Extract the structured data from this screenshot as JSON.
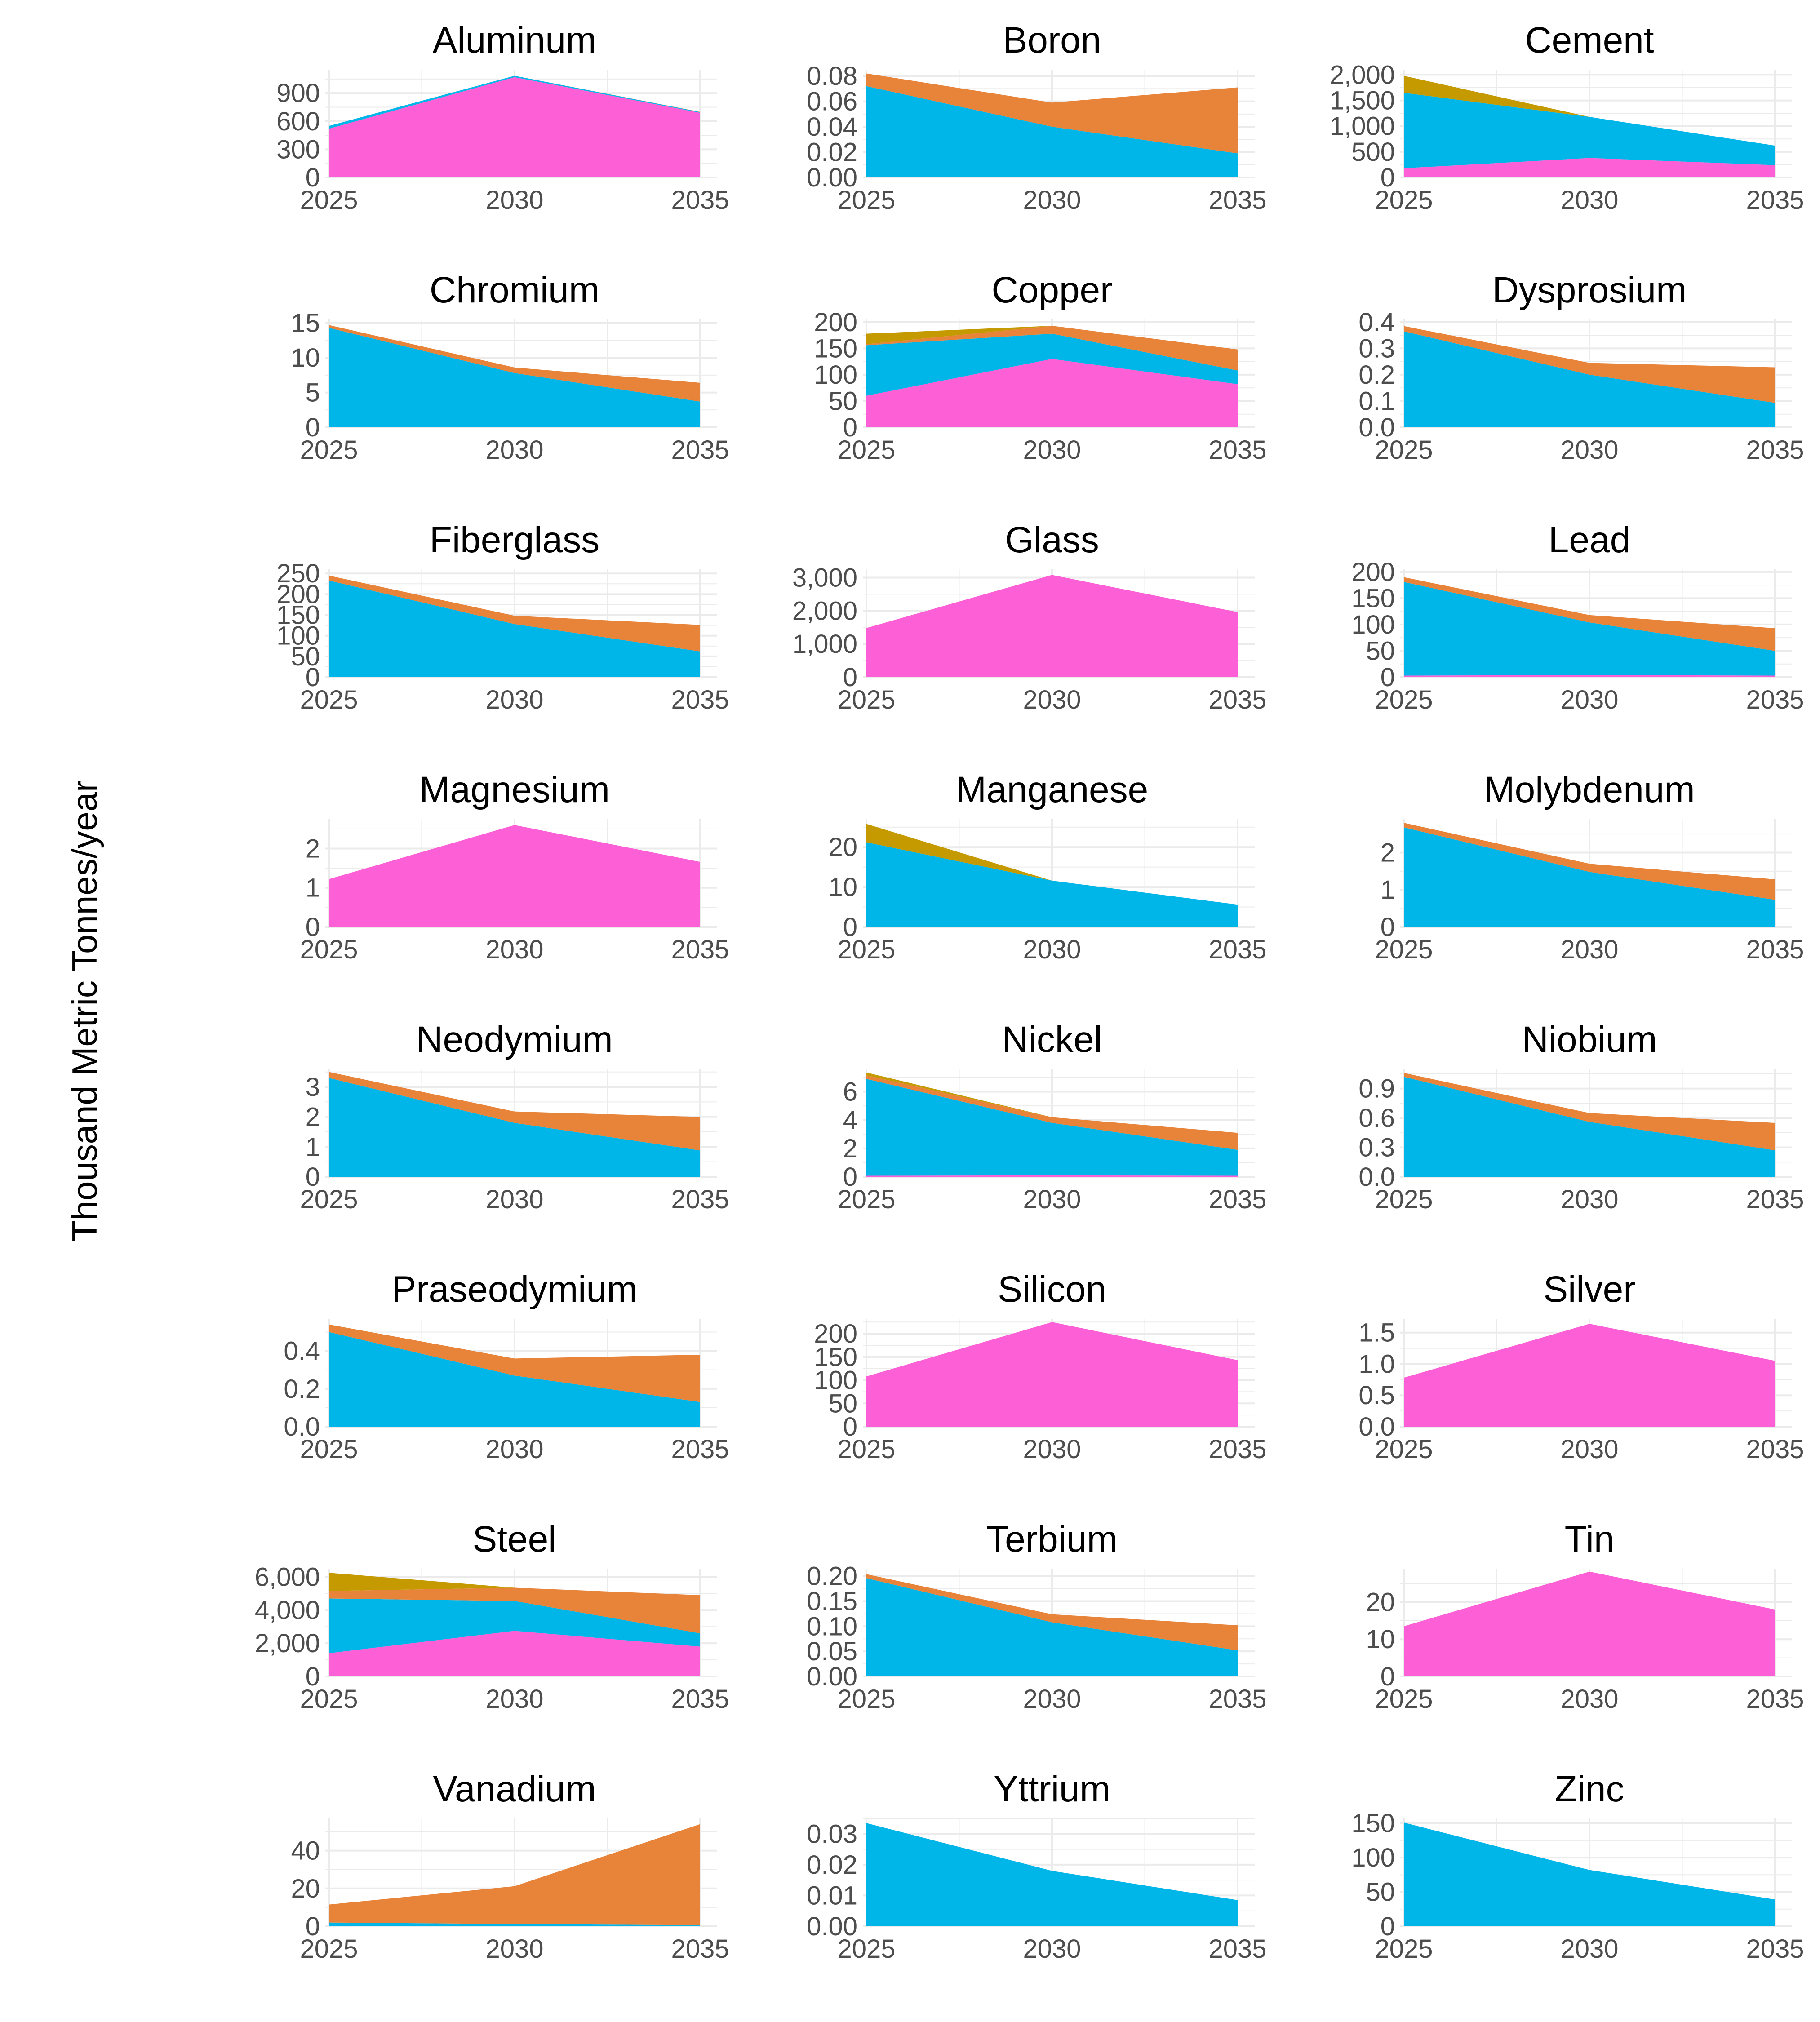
{
  "ylabel": "Thousand Metric Tonnes/year",
  "colors": {
    "series_olive": "#C49A00",
    "series_orange": "#E8833A",
    "series_cyan": "#00B5E8",
    "series_pink": "#FC5FD6",
    "grid": "#ebebeb"
  },
  "chart_data": [
    {
      "type": "area",
      "title": "Aluminum",
      "x": [
        2025,
        2030,
        2035
      ],
      "ylim": [
        0,
        1150
      ],
      "yticks": [
        0,
        300,
        600,
        900
      ],
      "yticklabels": [
        "0",
        "300",
        "600",
        "900"
      ],
      "series": [
        {
          "color": "#FC5FD6",
          "values": [
            520,
            1070,
            690
          ]
        },
        {
          "color": "#00B5E8",
          "values": [
            30,
            15,
            8
          ]
        },
        {
          "color": "#E8833A",
          "values": [
            0,
            0,
            2
          ]
        }
      ]
    },
    {
      "type": "area",
      "title": "Boron",
      "x": [
        2025,
        2030,
        2035
      ],
      "ylim": [
        0,
        0.085
      ],
      "yticks": [
        0,
        0.02,
        0.04,
        0.06,
        0.08
      ],
      "yticklabels": [
        "0.00",
        "0.02",
        "0.04",
        "0.06",
        "0.08"
      ],
      "series": [
        {
          "color": "#00B5E8",
          "values": [
            0.072,
            0.04,
            0.019
          ]
        },
        {
          "color": "#E8833A",
          "values": [
            0.01,
            0.019,
            0.052
          ]
        }
      ]
    },
    {
      "type": "area",
      "title": "Cement",
      "x": [
        2025,
        2030,
        2035
      ],
      "ylim": [
        0,
        2100
      ],
      "yticks": [
        0,
        500,
        1000,
        1500,
        2000
      ],
      "yticklabels": [
        "0",
        "500",
        "1,000",
        "1,500",
        "2,000"
      ],
      "series": [
        {
          "color": "#FC5FD6",
          "values": [
            180,
            380,
            240
          ]
        },
        {
          "color": "#00B5E8",
          "values": [
            1470,
            800,
            380
          ]
        },
        {
          "color": "#C49A00",
          "values": [
            330,
            0,
            0
          ]
        }
      ]
    },
    {
      "type": "area",
      "title": "Chromium",
      "x": [
        2025,
        2030,
        2035
      ],
      "ylim": [
        0,
        15.5
      ],
      "yticks": [
        0,
        5,
        10,
        15
      ],
      "yticklabels": [
        "0",
        "5",
        "10",
        "15"
      ],
      "series": [
        {
          "color": "#00B5E8",
          "values": [
            14.3,
            7.8,
            3.7
          ]
        },
        {
          "color": "#E8833A",
          "values": [
            0.4,
            0.8,
            2.7
          ]
        }
      ]
    },
    {
      "type": "area",
      "title": "Copper",
      "x": [
        2025,
        2030,
        2035
      ],
      "ylim": [
        0,
        205
      ],
      "yticks": [
        0,
        50,
        100,
        150,
        200
      ],
      "yticklabels": [
        "0",
        "50",
        "100",
        "150",
        "200"
      ],
      "series": [
        {
          "color": "#FC5FD6",
          "values": [
            60,
            130,
            82
          ]
        },
        {
          "color": "#00B5E8",
          "values": [
            96,
            48,
            26
          ]
        },
        {
          "color": "#E8833A",
          "values": [
            2,
            15,
            40
          ]
        },
        {
          "color": "#C49A00",
          "values": [
            20,
            0,
            0
          ]
        }
      ]
    },
    {
      "type": "area",
      "title": "Dysprosium",
      "x": [
        2025,
        2030,
        2035
      ],
      "ylim": [
        0,
        0.41
      ],
      "yticks": [
        0,
        0.1,
        0.2,
        0.3,
        0.4
      ],
      "yticklabels": [
        "0.0",
        "0.1",
        "0.2",
        "0.3",
        "0.4"
      ],
      "series": [
        {
          "color": "#00B5E8",
          "values": [
            0.365,
            0.2,
            0.093
          ]
        },
        {
          "color": "#E8833A",
          "values": [
            0.02,
            0.045,
            0.135
          ]
        }
      ]
    },
    {
      "type": "area",
      "title": "Fiberglass",
      "x": [
        2025,
        2030,
        2035
      ],
      "ylim": [
        0,
        260
      ],
      "yticks": [
        0,
        50,
        100,
        150,
        200,
        250
      ],
      "yticklabels": [
        "0",
        "50",
        "100",
        "150",
        "200",
        "250"
      ],
      "series": [
        {
          "color": "#00B5E8",
          "values": [
            233,
            128,
            62
          ]
        },
        {
          "color": "#E8833A",
          "values": [
            12,
            20,
            64
          ]
        }
      ]
    },
    {
      "type": "area",
      "title": "Glass",
      "x": [
        2025,
        2030,
        2035
      ],
      "ylim": [
        0,
        3250
      ],
      "yticks": [
        0,
        1000,
        2000,
        3000
      ],
      "yticklabels": [
        "0",
        "1,000",
        "2,000",
        "3,000"
      ],
      "series": [
        {
          "color": "#FC5FD6",
          "values": [
            1480,
            3080,
            1960
          ]
        }
      ]
    },
    {
      "type": "area",
      "title": "Lead",
      "x": [
        2025,
        2030,
        2035
      ],
      "ylim": [
        0,
        205
      ],
      "yticks": [
        0,
        50,
        100,
        150,
        200
      ],
      "yticklabels": [
        "0",
        "50",
        "100",
        "150",
        "200"
      ],
      "series": [
        {
          "color": "#FC5FD6",
          "values": [
            3,
            4,
            3
          ]
        },
        {
          "color": "#00B5E8",
          "values": [
            178,
            100,
            47
          ]
        },
        {
          "color": "#E8833A",
          "values": [
            9,
            14,
            43
          ]
        }
      ]
    },
    {
      "type": "area",
      "title": "Magnesium",
      "x": [
        2025,
        2030,
        2035
      ],
      "ylim": [
        0,
        2.75
      ],
      "yticks": [
        0,
        1,
        2
      ],
      "yticklabels": [
        "0",
        "1",
        "2"
      ],
      "series": [
        {
          "color": "#FC5FD6",
          "values": [
            1.22,
            2.6,
            1.66
          ]
        }
      ]
    },
    {
      "type": "area",
      "title": "Manganese",
      "x": [
        2025,
        2030,
        2035
      ],
      "ylim": [
        0,
        27
      ],
      "yticks": [
        0,
        10,
        20
      ],
      "yticklabels": [
        "0",
        "10",
        "20"
      ],
      "series": [
        {
          "color": "#00B5E8",
          "values": [
            21.2,
            11.6,
            5.6
          ]
        },
        {
          "color": "#C49A00",
          "values": [
            4.6,
            0,
            0
          ]
        }
      ]
    },
    {
      "type": "area",
      "title": "Molybdenum",
      "x": [
        2025,
        2030,
        2035
      ],
      "ylim": [
        0,
        2.9
      ],
      "yticks": [
        0,
        1,
        2
      ],
      "yticklabels": [
        "0",
        "1",
        "2"
      ],
      "series": [
        {
          "color": "#00B5E8",
          "values": [
            2.68,
            1.48,
            0.73
          ]
        },
        {
          "color": "#E8833A",
          "values": [
            0.12,
            0.22,
            0.55
          ]
        }
      ]
    },
    {
      "type": "area",
      "title": "Neodymium",
      "x": [
        2025,
        2030,
        2035
      ],
      "ylim": [
        0,
        3.6
      ],
      "yticks": [
        0,
        1,
        2,
        3
      ],
      "yticklabels": [
        "0",
        "1",
        "2",
        "3"
      ],
      "series": [
        {
          "color": "#00B5E8",
          "values": [
            3.3,
            1.8,
            0.88
          ]
        },
        {
          "color": "#E8833A",
          "values": [
            0.2,
            0.38,
            1.12
          ]
        }
      ]
    },
    {
      "type": "area",
      "title": "Nickel",
      "x": [
        2025,
        2030,
        2035
      ],
      "ylim": [
        0,
        7.6
      ],
      "yticks": [
        0,
        2,
        4,
        6
      ],
      "yticklabels": [
        "0",
        "2",
        "4",
        "6"
      ],
      "series": [
        {
          "color": "#FC5FD6",
          "values": [
            0.08,
            0.1,
            0.08
          ]
        },
        {
          "color": "#00B5E8",
          "values": [
            6.82,
            3.7,
            1.82
          ]
        },
        {
          "color": "#E8833A",
          "values": [
            0.25,
            0.4,
            1.2
          ]
        },
        {
          "color": "#C49A00",
          "values": [
            0.2,
            0,
            0
          ]
        }
      ]
    },
    {
      "type": "area",
      "title": "Niobium",
      "x": [
        2025,
        2030,
        2035
      ],
      "ylim": [
        0,
        1.1
      ],
      "yticks": [
        0,
        0.3,
        0.6,
        0.9
      ],
      "yticklabels": [
        "0.0",
        "0.3",
        "0.6",
        "0.9"
      ],
      "series": [
        {
          "color": "#00B5E8",
          "values": [
            1.02,
            0.56,
            0.27
          ]
        },
        {
          "color": "#E8833A",
          "values": [
            0.04,
            0.09,
            0.28
          ]
        }
      ]
    },
    {
      "type": "area",
      "title": "Praseodymium",
      "x": [
        2025,
        2030,
        2035
      ],
      "ylim": [
        0,
        0.57
      ],
      "yticks": [
        0,
        0.2,
        0.4
      ],
      "yticklabels": [
        "0.0",
        "0.2",
        "0.4"
      ],
      "series": [
        {
          "color": "#00B5E8",
          "values": [
            0.5,
            0.27,
            0.13
          ]
        },
        {
          "color": "#E8833A",
          "values": [
            0.04,
            0.09,
            0.25
          ]
        }
      ]
    },
    {
      "type": "area",
      "title": "Silicon",
      "x": [
        2025,
        2030,
        2035
      ],
      "ylim": [
        0,
        232
      ],
      "yticks": [
        0,
        50,
        100,
        150,
        200
      ],
      "yticklabels": [
        "0",
        "50",
        "100",
        "150",
        "200"
      ],
      "series": [
        {
          "color": "#FC5FD6",
          "values": [
            108,
            225,
            143
          ]
        }
      ]
    },
    {
      "type": "area",
      "title": "Silver",
      "x": [
        2025,
        2030,
        2035
      ],
      "ylim": [
        0,
        1.72
      ],
      "yticks": [
        0,
        0.5,
        1.0,
        1.5
      ],
      "yticklabels": [
        "0.0",
        "0.5",
        "1.0",
        "1.5"
      ],
      "series": [
        {
          "color": "#FC5FD6",
          "values": [
            0.78,
            1.64,
            1.05
          ]
        }
      ]
    },
    {
      "type": "area",
      "title": "Steel",
      "x": [
        2025,
        2030,
        2035
      ],
      "ylim": [
        0,
        6500
      ],
      "yticks": [
        0,
        2000,
        4000,
        6000
      ],
      "yticklabels": [
        "0",
        "2,000",
        "4,000",
        "6,000"
      ],
      "series": [
        {
          "color": "#FC5FD6",
          "values": [
            1400,
            2750,
            1800
          ]
        },
        {
          "color": "#00B5E8",
          "values": [
            3300,
            1800,
            800
          ]
        },
        {
          "color": "#E8833A",
          "values": [
            450,
            800,
            2300
          ]
        },
        {
          "color": "#C49A00",
          "values": [
            1100,
            0,
            0
          ]
        }
      ]
    },
    {
      "type": "area",
      "title": "Terbium",
      "x": [
        2025,
        2030,
        2035
      ],
      "ylim": [
        0,
        0.215
      ],
      "yticks": [
        0,
        0.05,
        0.1,
        0.15,
        0.2
      ],
      "yticklabels": [
        "0.00",
        "0.05",
        "0.10",
        "0.15",
        "0.20"
      ],
      "series": [
        {
          "color": "#00B5E8",
          "values": [
            0.196,
            0.108,
            0.052
          ]
        },
        {
          "color": "#E8833A",
          "values": [
            0.008,
            0.016,
            0.05
          ]
        }
      ]
    },
    {
      "type": "area",
      "title": "Tin",
      "x": [
        2025,
        2030,
        2035
      ],
      "ylim": [
        0,
        29
      ],
      "yticks": [
        0,
        10,
        20
      ],
      "yticklabels": [
        "0",
        "10",
        "20"
      ],
      "series": [
        {
          "color": "#FC5FD6",
          "values": [
            13.5,
            28.2,
            18
          ]
        }
      ]
    },
    {
      "type": "area",
      "title": "Vanadium",
      "x": [
        2025,
        2030,
        2035
      ],
      "ylim": [
        0,
        57
      ],
      "yticks": [
        0,
        20,
        40
      ],
      "yticklabels": [
        "0",
        "20",
        "40"
      ],
      "series": [
        {
          "color": "#00B5E8",
          "values": [
            2,
            1.2,
            0.6
          ]
        },
        {
          "color": "#E8833A",
          "values": [
            9.5,
            20,
            53.4
          ]
        }
      ]
    },
    {
      "type": "area",
      "title": "Yttrium",
      "x": [
        2025,
        2030,
        2035
      ],
      "ylim": [
        0,
        0.035
      ],
      "yticks": [
        0,
        0.01,
        0.02,
        0.03
      ],
      "yticklabels": [
        "0.00",
        "0.01",
        "0.02",
        "0.03"
      ],
      "series": [
        {
          "color": "#00B5E8",
          "values": [
            0.0335,
            0.018,
            0.0085
          ]
        }
      ]
    },
    {
      "type": "area",
      "title": "Zinc",
      "x": [
        2025,
        2030,
        2035
      ],
      "ylim": [
        0,
        157
      ],
      "yticks": [
        0,
        50,
        100,
        150
      ],
      "yticklabels": [
        "0",
        "50",
        "100",
        "150"
      ],
      "series": [
        {
          "color": "#00B5E8",
          "values": [
            151,
            82,
            39
          ]
        }
      ]
    }
  ]
}
